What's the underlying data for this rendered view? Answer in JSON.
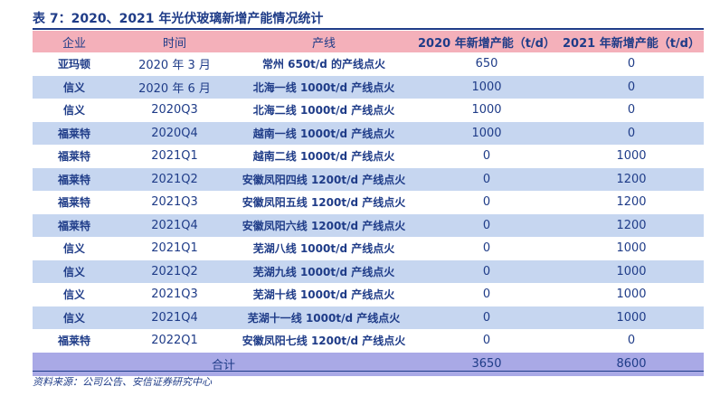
{
  "title": "表 7：2020、2021 年光伏玻璃新增产能情况统计",
  "headers": {
    "company": "企业",
    "time": "时间",
    "line": "产线",
    "cap_2020": "2020 年新增产能（t/d）",
    "cap_2021": "2021 年新增产能（t/d）"
  },
  "rows": [
    {
      "company": "亚玛顿",
      "time": "2020 年 3 月",
      "line": "常州 650t/d 的产线点火",
      "cap_2020": "650",
      "cap_2021": "0"
    },
    {
      "company": "信义",
      "time": "2020 年 6 月",
      "line": "北海一线 1000t/d 产线点火",
      "cap_2020": "1000",
      "cap_2021": "0"
    },
    {
      "company": "信义",
      "time": "2020Q3",
      "line": "北海二线 1000t/d 产线点火",
      "cap_2020": "1000",
      "cap_2021": "0"
    },
    {
      "company": "福莱特",
      "time": "2020Q4",
      "line": "越南一线 1000t/d 产线点火",
      "cap_2020": "1000",
      "cap_2021": "0"
    },
    {
      "company": "福莱特",
      "time": "2021Q1",
      "line": "越南二线 1000t/d 产线点火",
      "cap_2020": "0",
      "cap_2021": "1000"
    },
    {
      "company": "福莱特",
      "time": "2021Q2",
      "line": "安徽凤阳四线 1200t/d 产线点火",
      "cap_2020": "0",
      "cap_2021": "1200"
    },
    {
      "company": "福莱特",
      "time": "2021Q3",
      "line": "安徽凤阳五线 1200t/d 产线点火",
      "cap_2020": "0",
      "cap_2021": "1200"
    },
    {
      "company": "福莱特",
      "time": "2021Q4",
      "line": "安徽凤阳六线 1200t/d 产线点火",
      "cap_2020": "0",
      "cap_2021": "1200"
    },
    {
      "company": "信义",
      "time": "2021Q1",
      "line": "芜湖八线 1000t/d 产线点火",
      "cap_2020": "0",
      "cap_2021": "1000"
    },
    {
      "company": "信义",
      "time": "2021Q2",
      "line": "芜湖九线 1000t/d 产线点火",
      "cap_2020": "0",
      "cap_2021": "1000"
    },
    {
      "company": "信义",
      "time": "2021Q3",
      "line": "芜湖十线 1000t/d 产线点火",
      "cap_2020": "0",
      "cap_2021": "1000"
    },
    {
      "company": "信义",
      "time": "2021Q4",
      "line": "芜湖十一线 1000t/d 产线点火",
      "cap_2020": "0",
      "cap_2021": "1000"
    },
    {
      "company": "福莱特",
      "time": "2022Q1",
      "line": "安徽凤阳七线 1200t/d 产线点火",
      "cap_2020": "0",
      "cap_2021": "0"
    }
  ],
  "total": {
    "label": "合计",
    "cap_2020": "3650",
    "cap_2021": "8600"
  },
  "source": "资料来源：公司公告、安信证券研究中心",
  "colors": {
    "header_bg": "#f4b0ba",
    "shaded_row_bg": "#c6d6f0",
    "total_row_bg": "#a9a9e6",
    "text": "#1f3c88"
  }
}
